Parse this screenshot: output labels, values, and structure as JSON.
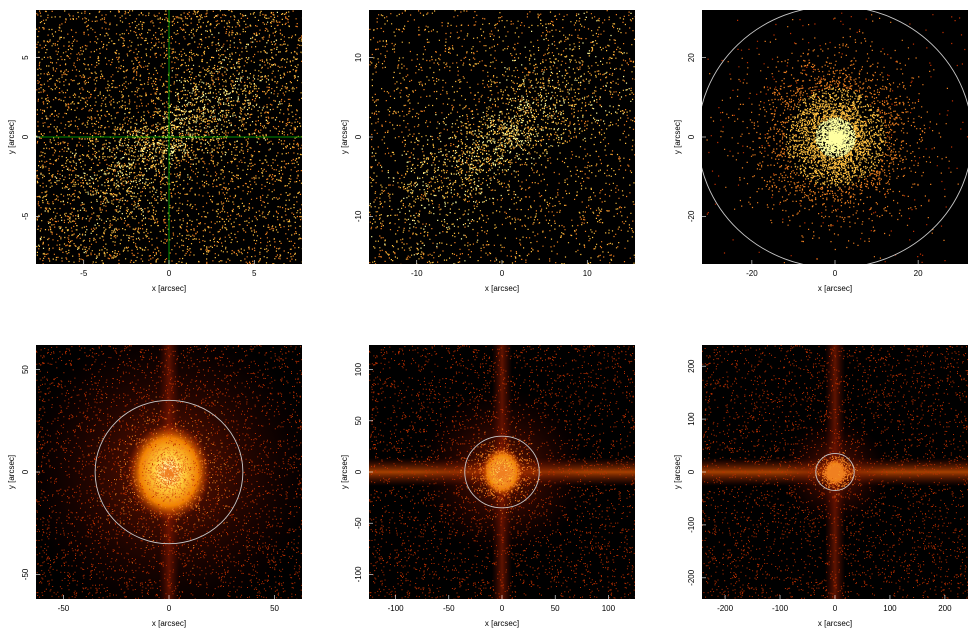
{
  "chart_data": [
    {
      "type": "image",
      "xlabel": "x [arcsec]",
      "ylabel": "y [arcsec]",
      "xlim": [
        -7.8,
        7.8
      ],
      "ylim": [
        -8,
        8
      ],
      "xticks": [
        -5,
        0,
        5
      ],
      "yticks": [
        -5,
        0,
        5
      ],
      "crosshair": {
        "x": 0,
        "y": 0,
        "color": "#00c000"
      }
    },
    {
      "type": "image",
      "xlabel": "x [arcsec]",
      "ylabel": "y [arcsec]",
      "xlim": [
        -15.6,
        15.6
      ],
      "ylim": [
        -16,
        16
      ],
      "xticks": [
        -10,
        0,
        10
      ],
      "yticks": [
        -10,
        0,
        10
      ]
    },
    {
      "type": "image",
      "xlabel": "x [arcsec]",
      "ylabel": "y [arcsec]",
      "xlim": [
        -32,
        32
      ],
      "ylim": [
        -32,
        32
      ],
      "xticks": [
        -20,
        0,
        20
      ],
      "yticks": [
        -20,
        0,
        20
      ],
      "circle": {
        "x": 0,
        "y": 0,
        "r": 33,
        "color": "#c8c8c8"
      }
    },
    {
      "type": "image",
      "xlabel": "x [arcsec]",
      "ylabel": "y [arcsec]",
      "xlim": [
        -63,
        63
      ],
      "ylim": [
        -62,
        62
      ],
      "xticks": [
        -50,
        0,
        50
      ],
      "yticks": [
        -50,
        0,
        50
      ],
      "circle": {
        "x": 0,
        "y": 0,
        "r": 35,
        "color": "#c8c8c8"
      }
    },
    {
      "type": "image",
      "xlabel": "x [arcsec]",
      "ylabel": "y [arcsec]",
      "xlim": [
        -125,
        125
      ],
      "ylim": [
        -124,
        124
      ],
      "xticks": [
        -100,
        -50,
        0,
        50,
        100
      ],
      "yticks": [
        -100,
        -50,
        0,
        50,
        100
      ],
      "circle": {
        "x": 0,
        "y": 0,
        "r": 35,
        "color": "#c8c8c8"
      }
    },
    {
      "type": "image",
      "xlabel": "x [arcsec]",
      "ylabel": "y [arcsec]",
      "xlim": [
        -242,
        242
      ],
      "ylim": [
        -240,
        240
      ],
      "xticks": [
        -200,
        -100,
        0,
        100,
        200
      ],
      "yticks": [
        -200,
        -100,
        0,
        100,
        200
      ],
      "circle": {
        "x": 0,
        "y": 0,
        "r": 35,
        "color": "#c8c8c8"
      }
    }
  ]
}
